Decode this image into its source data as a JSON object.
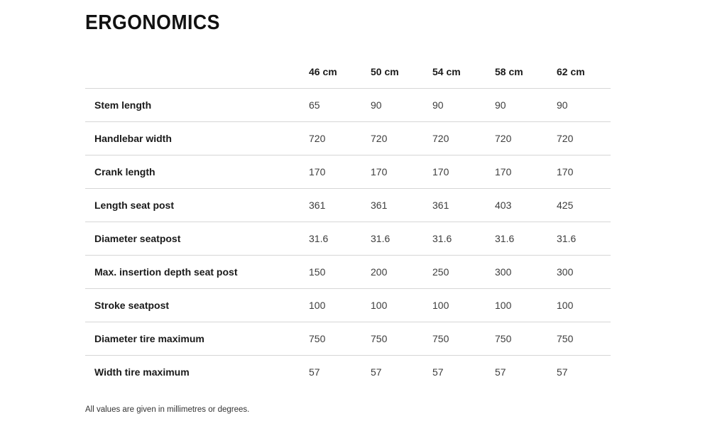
{
  "page": {
    "title": "ERGONOMICS",
    "footnote": "All values are given in millimetres or degrees."
  },
  "colors": {
    "text_primary": "#1a1a1a",
    "text_value": "#3d3d3d",
    "divider": "#d6d6d6",
    "background": "#ffffff"
  },
  "table": {
    "columns": [
      "46 cm",
      "50 cm",
      "54 cm",
      "58 cm",
      "62 cm"
    ],
    "rows": [
      {
        "label": "Stem length",
        "values": [
          "65",
          "90",
          "90",
          "90",
          "90"
        ]
      },
      {
        "label": "Handlebar width",
        "values": [
          "720",
          "720",
          "720",
          "720",
          "720"
        ]
      },
      {
        "label": "Crank length",
        "values": [
          "170",
          "170",
          "170",
          "170",
          "170"
        ]
      },
      {
        "label": "Length seat post",
        "values": [
          "361",
          "361",
          "361",
          "403",
          "425"
        ]
      },
      {
        "label": "Diameter seatpost",
        "values": [
          "31.6",
          "31.6",
          "31.6",
          "31.6",
          "31.6"
        ]
      },
      {
        "label": "Max. insertion depth seat post",
        "values": [
          "150",
          "200",
          "250",
          "300",
          "300"
        ]
      },
      {
        "label": "Stroke seatpost",
        "values": [
          "100",
          "100",
          "100",
          "100",
          "100"
        ]
      },
      {
        "label": "Diameter tire maximum",
        "values": [
          "750",
          "750",
          "750",
          "750",
          "750"
        ]
      },
      {
        "label": "Width tire maximum",
        "values": [
          "57",
          "57",
          "57",
          "57",
          "57"
        ]
      }
    ]
  }
}
